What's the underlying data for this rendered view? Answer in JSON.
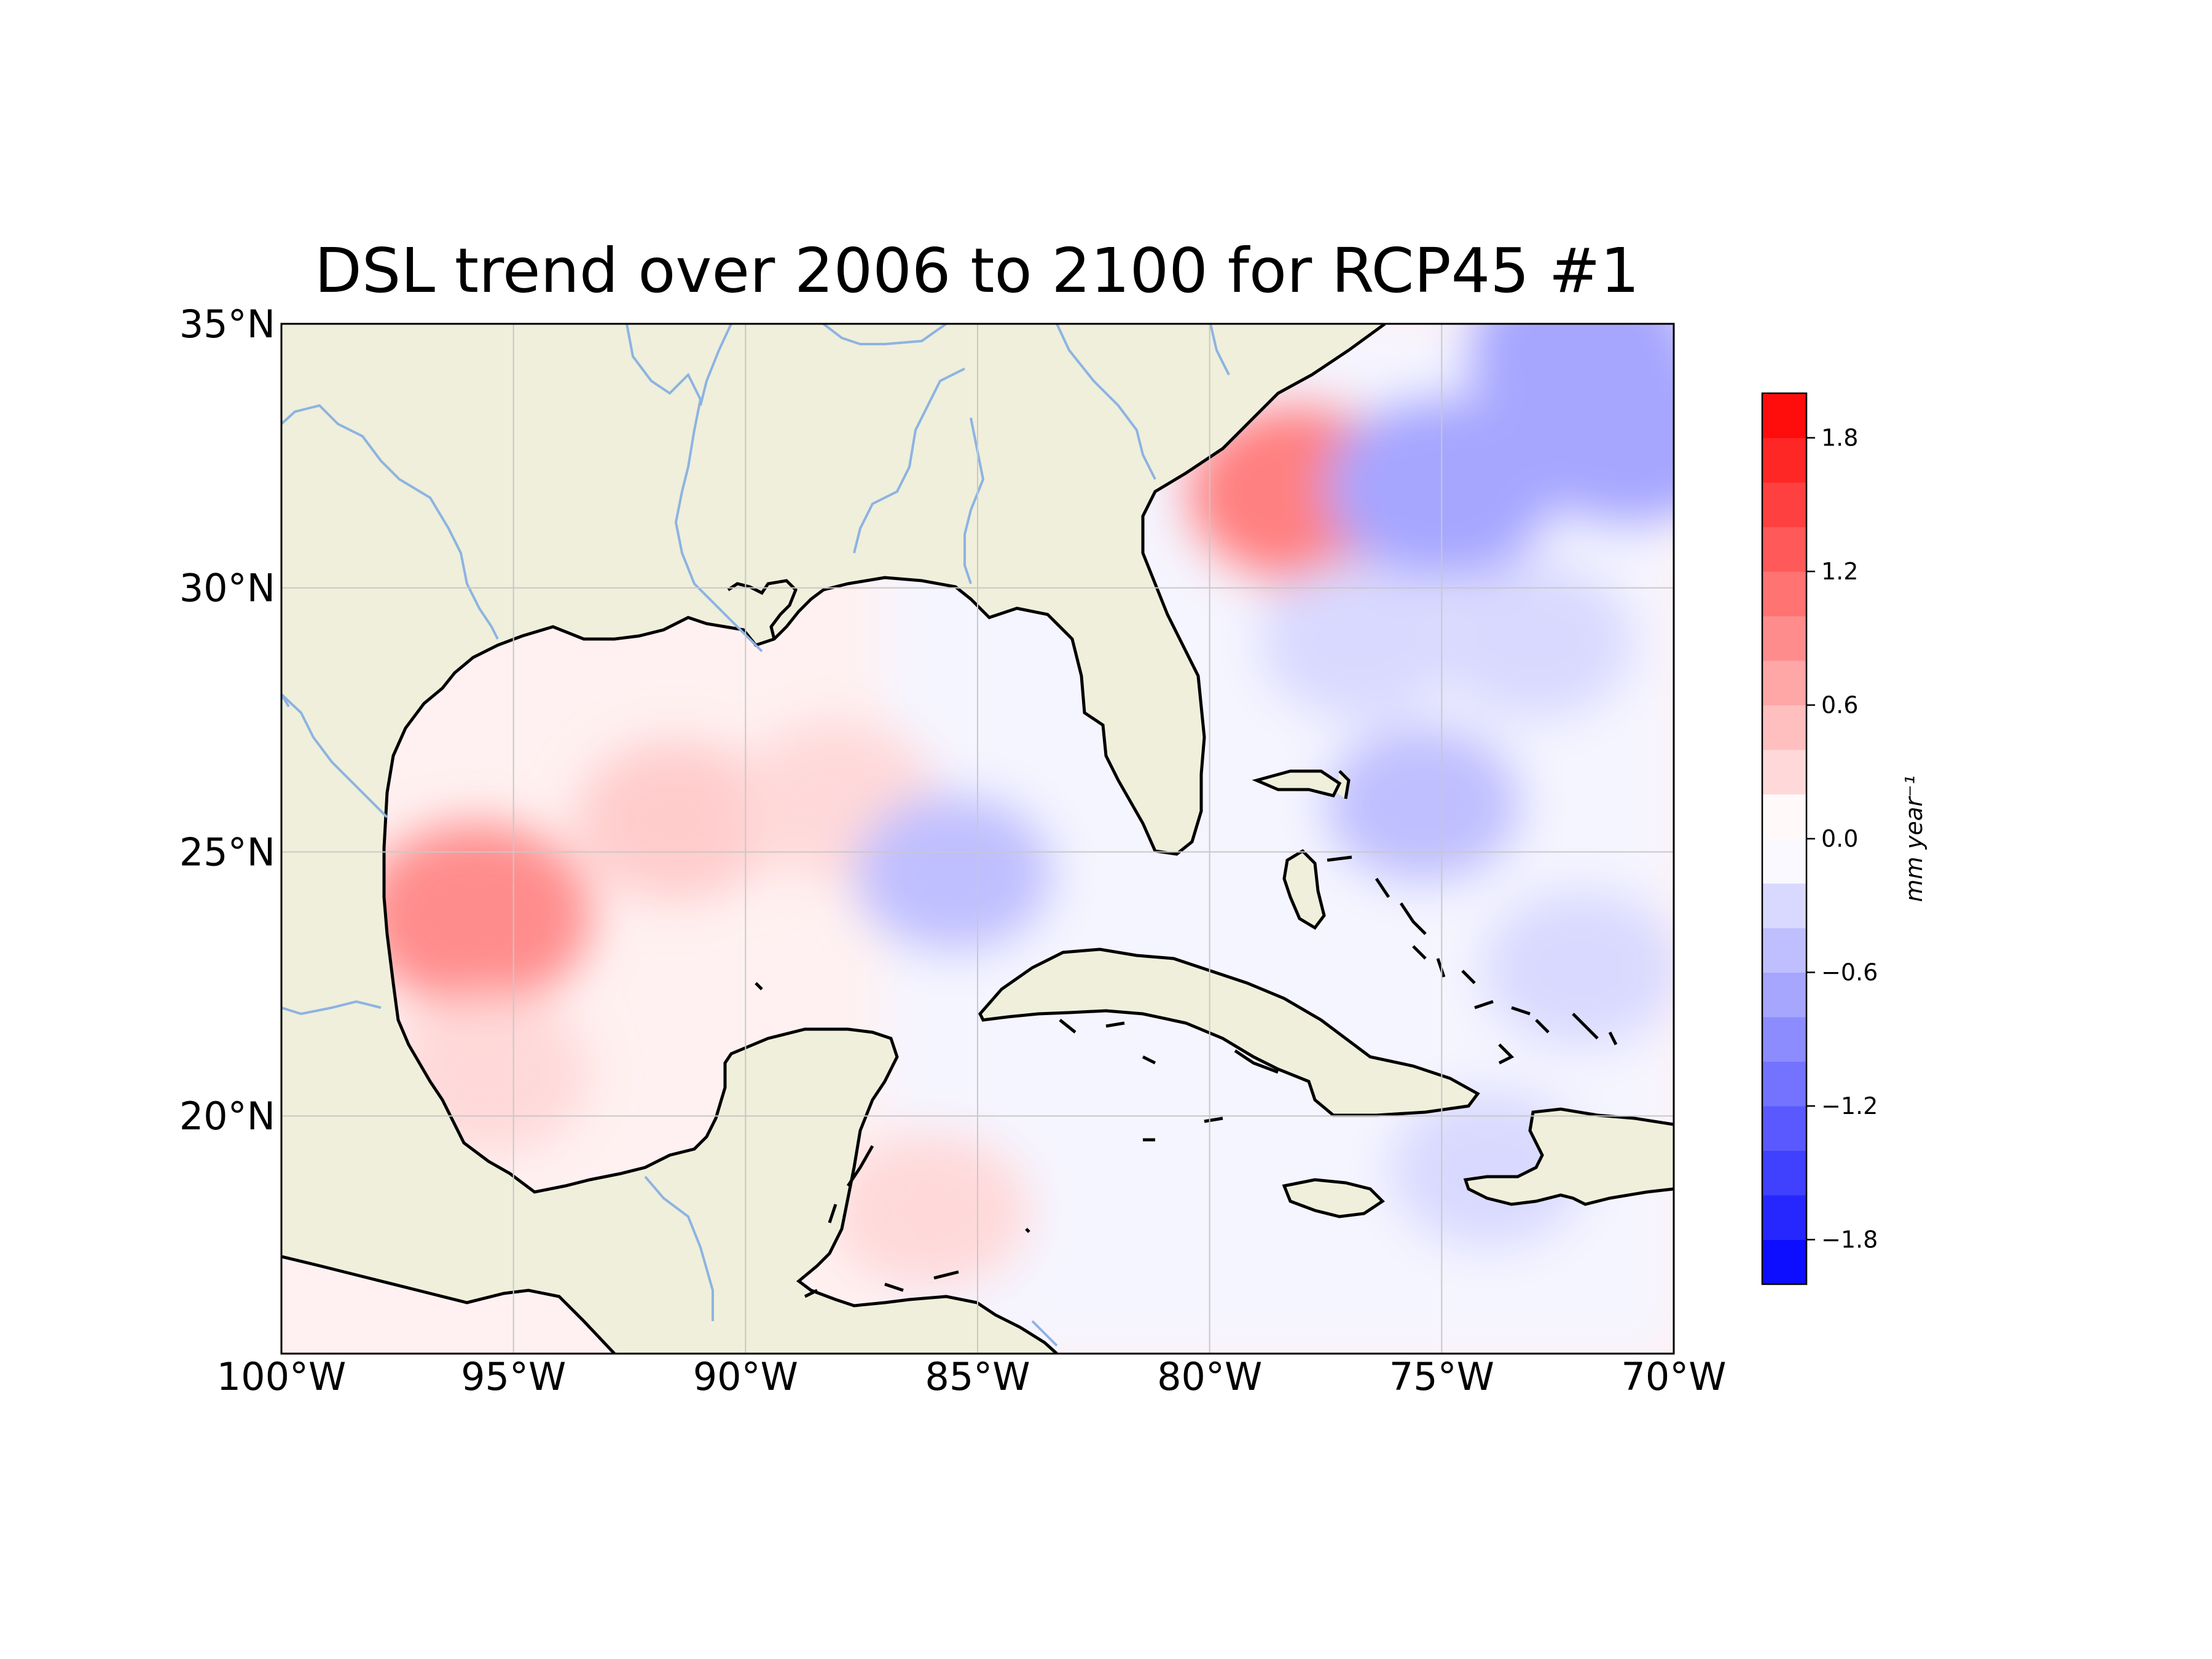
{
  "title": "DSL trend over 2006 to 2100 for RCP45 #1",
  "map": {
    "extent": {
      "lon": [
        -100,
        -70
      ],
      "lat": [
        15.5,
        35
      ]
    },
    "land_color": "#efefdb",
    "coast_color": "#000000",
    "river_color": "#8db3e2",
    "gridline_color": "#c8c8c8",
    "lon_ticks": [
      {
        "value": -100,
        "label": "100°W"
      },
      {
        "value": -95,
        "label": "95°W"
      },
      {
        "value": -90,
        "label": "90°W"
      },
      {
        "value": -85,
        "label": "85°W"
      },
      {
        "value": -80,
        "label": "80°W"
      },
      {
        "value": -75,
        "label": "75°W"
      },
      {
        "value": -70,
        "label": "70°W"
      }
    ],
    "lat_ticks": [
      {
        "value": 35,
        "label": "35°N"
      },
      {
        "value": 30,
        "label": "30°N"
      },
      {
        "value": 25,
        "label": "25°N"
      },
      {
        "value": 20,
        "label": "20°N"
      }
    ],
    "features": [
      {
        "lon": -95.8,
        "lat": 23.8,
        "value": 0.9
      },
      {
        "lon": -91.5,
        "lat": 25.6,
        "value": 0.4
      },
      {
        "lon": -88.0,
        "lat": 26.0,
        "value": 0.3
      },
      {
        "lon": -95.5,
        "lat": 20.8,
        "value": 0.3
      },
      {
        "lon": -85.5,
        "lat": 24.6,
        "value": -0.5
      },
      {
        "lon": -78.1,
        "lat": 31.8,
        "value": 1.0
      },
      {
        "lon": -86.0,
        "lat": 18.2,
        "value": 0.3
      },
      {
        "lon": -72.0,
        "lat": 34.4,
        "value": -0.7
      },
      {
        "lon": -75.0,
        "lat": 31.9,
        "value": -0.7
      },
      {
        "lon": -71.0,
        "lat": 32.9,
        "value": -0.7
      },
      {
        "lon": -75.4,
        "lat": 25.9,
        "value": -0.5
      },
      {
        "lon": -73.0,
        "lat": 29.0,
        "value": -0.3
      },
      {
        "lon": -76.8,
        "lat": 29.0,
        "value": -0.3
      },
      {
        "lon": -72.0,
        "lat": 22.8,
        "value": -0.3
      },
      {
        "lon": -74.0,
        "lat": 19.0,
        "value": -0.3
      }
    ]
  },
  "colorbar": {
    "label": "mm year⁻¹",
    "range": [
      -2.0,
      2.0
    ],
    "step": 0.2,
    "low_color": "#0000ff",
    "high_color": "#ff0000",
    "ticks": [
      {
        "value": 1.8,
        "label": "1.8"
      },
      {
        "value": 1.2,
        "label": "1.2"
      },
      {
        "value": 0.6,
        "label": "0.6"
      },
      {
        "value": 0.0,
        "label": "0.0"
      },
      {
        "value": -0.6,
        "label": "−0.6"
      },
      {
        "value": -1.2,
        "label": "−1.2"
      },
      {
        "value": -1.8,
        "label": "−1.8"
      }
    ]
  }
}
